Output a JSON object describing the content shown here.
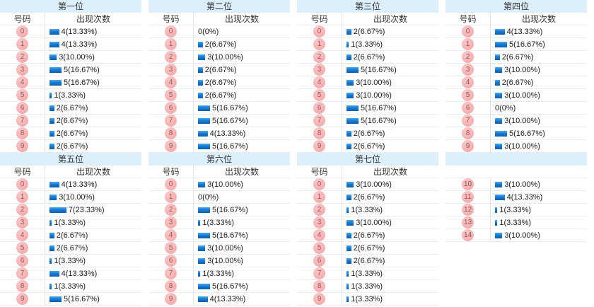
{
  "ui": {
    "col_number_label": "号码",
    "col_count_label": "出现次数"
  },
  "colors": {
    "title_band_bg": "#dbeefb",
    "title_text": "#333333",
    "row_border": "#e4ecf5",
    "divider": "#e3e3e3",
    "badge_bg": "#f5a2a2",
    "badge_text": "#8a5252",
    "bar_top": "#4da7ea",
    "bar_bottom": "#0a5cb2",
    "value_text": "#1a1a1a"
  },
  "chart_data": [
    {
      "type": "bar",
      "title": "第一位",
      "xlabel": "号码",
      "ylabel": "出现次数",
      "categories": [
        "0",
        "1",
        "2",
        "3",
        "4",
        "5",
        "6",
        "7",
        "8",
        "9"
      ],
      "values": [
        4,
        4,
        3,
        5,
        5,
        1,
        2,
        2,
        2,
        2
      ],
      "labels": [
        "4(13.33%)",
        "4(13.33%)",
        "3(10.00%)",
        "5(16.67%)",
        "5(16.67%)",
        "1(3.33%)",
        "2(6.67%)",
        "2(6.67%)",
        "2(6.67%)",
        "2(6.67%)"
      ]
    },
    {
      "type": "bar",
      "title": "第二位",
      "xlabel": "号码",
      "ylabel": "出现次数",
      "categories": [
        "0",
        "1",
        "2",
        "3",
        "4",
        "5",
        "6",
        "7",
        "8",
        "9"
      ],
      "values": [
        0,
        2,
        3,
        2,
        2,
        2,
        5,
        5,
        4,
        5
      ],
      "labels": [
        "0(0%)",
        "2(6.67%)",
        "3(10.00%)",
        "2(6.67%)",
        "2(6.67%)",
        "2(6.67%)",
        "5(16.67%)",
        "5(16.67%)",
        "4(13.33%)",
        "5(16.67%)"
      ]
    },
    {
      "type": "bar",
      "title": "第三位",
      "xlabel": "号码",
      "ylabel": "出现次数",
      "categories": [
        "0",
        "1",
        "2",
        "3",
        "4",
        "5",
        "6",
        "7",
        "8",
        "9"
      ],
      "values": [
        2,
        1,
        2,
        5,
        3,
        3,
        5,
        5,
        2,
        2
      ],
      "labels": [
        "2(6.67%)",
        "1(3.33%)",
        "2(6.67%)",
        "5(16.67%)",
        "3(10.00%)",
        "3(10.00%)",
        "5(16.67%)",
        "5(16.67%)",
        "2(6.67%)",
        "2(6.67%)"
      ]
    },
    {
      "type": "bar",
      "title": "第四位",
      "xlabel": "号码",
      "ylabel": "出现次数",
      "categories": [
        "0",
        "1",
        "2",
        "3",
        "4",
        "5",
        "6",
        "7",
        "8",
        "9"
      ],
      "values": [
        4,
        5,
        2,
        3,
        2,
        3,
        0,
        3,
        5,
        3
      ],
      "labels": [
        "4(13.33%)",
        "5(16.67%)",
        "2(6.67%)",
        "3(10.00%)",
        "2(6.67%)",
        "3(10.00%)",
        "0(0%)",
        "3(10.00%)",
        "5(16.67%)",
        "3(10.00%)"
      ]
    },
    {
      "type": "bar",
      "title": "第五位",
      "xlabel": "号码",
      "ylabel": "出现次数",
      "categories": [
        "0",
        "1",
        "2",
        "3",
        "4",
        "5",
        "6",
        "7",
        "8",
        "9"
      ],
      "values": [
        4,
        3,
        7,
        1,
        2,
        2,
        1,
        4,
        1,
        5
      ],
      "labels": [
        "4(13.33%)",
        "3(10.00%)",
        "7(23.33%)",
        "1(3.33%)",
        "2(6.67%)",
        "2(6.67%)",
        "1(3.33%)",
        "4(13.33%)",
        "1(3.33%)",
        "5(16.67%)"
      ]
    },
    {
      "type": "bar",
      "title": "第六位",
      "xlabel": "号码",
      "ylabel": "出现次数",
      "categories": [
        "0",
        "1",
        "2",
        "3",
        "4",
        "5",
        "6",
        "7",
        "8",
        "9"
      ],
      "values": [
        3,
        0,
        5,
        1,
        5,
        3,
        3,
        1,
        5,
        4
      ],
      "labels": [
        "3(10.00%)",
        "0(0%)",
        "5(16.67%)",
        "1(3.33%)",
        "5(16.67%)",
        "3(10.00%)",
        "3(10.00%)",
        "1(3.33%)",
        "5(16.67%)",
        "4(13.33%)"
      ]
    },
    {
      "type": "bar",
      "title": "第七位",
      "xlabel": "号码",
      "ylabel": "出现次数",
      "categories": [
        "0",
        "1",
        "2",
        "3",
        "4",
        "5",
        "6",
        "7",
        "8",
        "9"
      ],
      "values": [
        3,
        2,
        1,
        3,
        2,
        2,
        2,
        1,
        1,
        1
      ],
      "labels": [
        "3(10.00%)",
        "2(6.67%)",
        "1(3.33%)",
        "3(10.00%)",
        "2(6.67%)",
        "2(6.67%)",
        "2(6.67%)",
        "1(3.33%)",
        "1(3.33%)",
        "1(3.33%)"
      ]
    },
    {
      "type": "bar",
      "title": "",
      "show_headers": false,
      "xlabel": "",
      "ylabel": "",
      "categories": [
        "10",
        "11",
        "12",
        "13",
        "14"
      ],
      "values": [
        3,
        4,
        1,
        1,
        3
      ],
      "labels": [
        "3(10.00%)",
        "4(13.33%)",
        "1(3.33%)",
        "1(3.33%)",
        "3(10.00%)"
      ]
    }
  ]
}
